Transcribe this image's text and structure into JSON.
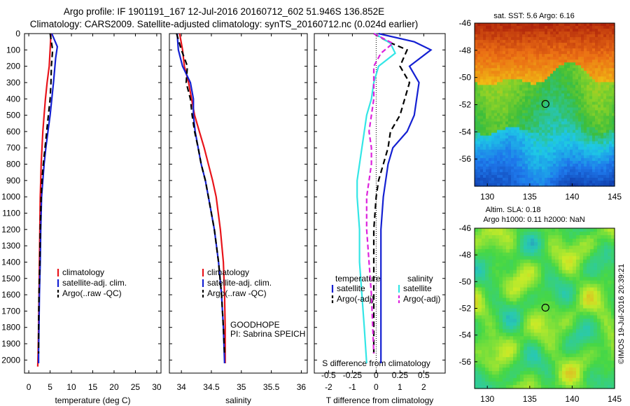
{
  "title_line1": "Argo profile: IF 1901191_167 12-Jul-2016 20160712_602 51.946S 136.852E",
  "title_line2": "Climatology: CARS2009. Satellite-adjusted climatology: synTS_20160712.nc (0.024d earlier)",
  "colors": {
    "climatology": "#e8141a",
    "satellite": "#1420d2",
    "argo": "#000000",
    "salinity_sat": "#33e6e6",
    "salinity_argo": "#dd22dd"
  },
  "chart_data": [
    {
      "type": "line",
      "xlabel": "temperature (deg C)",
      "ylabel": "",
      "xlim": [
        -1,
        31
      ],
      "ylim": [
        2080,
        0
      ],
      "xticks": [
        0,
        5,
        10,
        15,
        20,
        25,
        30
      ],
      "yticks": [
        0,
        100,
        200,
        300,
        400,
        500,
        600,
        700,
        800,
        900,
        1000,
        1100,
        1200,
        1300,
        1400,
        1500,
        1600,
        1700,
        1800,
        1900,
        2000
      ],
      "legend": {
        "position": "center-right",
        "entries": [
          "climatology",
          "satellite-adj. clim.",
          "Argo(..raw -QC)"
        ]
      },
      "series": [
        {
          "name": "climatology",
          "x": [
            5.2,
            5.0,
            4.8,
            4.3,
            3.9,
            3.6,
            3.3,
            3.1,
            2.9,
            2.8,
            2.7,
            2.6,
            2.5,
            2.4,
            2.3,
            2.2,
            2.1
          ],
          "y": [
            0,
            100,
            200,
            300,
            400,
            500,
            600,
            700,
            800,
            900,
            1000,
            1200,
            1400,
            1600,
            1800,
            1950,
            2040
          ]
        },
        {
          "name": "satellite-adj. clim.",
          "x": [
            5.4,
            6.7,
            6.3,
            5.8,
            5.4,
            5.0,
            4.5,
            4.0,
            3.6,
            3.3,
            3.0,
            2.8,
            2.7,
            2.5,
            2.4,
            2.3,
            2.3
          ],
          "y": [
            0,
            80,
            150,
            300,
            400,
            500,
            600,
            700,
            800,
            900,
            1000,
            1200,
            1400,
            1600,
            1800,
            1950,
            2020
          ]
        },
        {
          "name": "Argo(..raw -QC)",
          "x": [
            5.0,
            5.6,
            5.3,
            5.2,
            5.0,
            4.6,
            4.2,
            3.8,
            3.4,
            3.1,
            2.9,
            2.7,
            2.6,
            2.4,
            2.3,
            2.3
          ],
          "y": [
            0,
            100,
            200,
            300,
            400,
            500,
            600,
            700,
            800,
            900,
            1000,
            1200,
            1400,
            1600,
            1800,
            1960
          ]
        }
      ]
    },
    {
      "type": "line",
      "xlabel": "salinity",
      "xlim": [
        33.8,
        36.1
      ],
      "ylim": [
        2080,
        0
      ],
      "xticks": [
        34,
        34.5,
        35,
        35.5,
        36
      ],
      "legend": {
        "position": "center-right",
        "entries": [
          "climatology",
          "satellite-adj. clim.",
          "Argo(..raw -QC)"
        ]
      },
      "annotations": [
        "GOODHOPE",
        "PI: Sabrina SPEICH"
      ],
      "series": [
        {
          "name": "climatology",
          "x": [
            33.97,
            34.02,
            34.05,
            34.12,
            34.17,
            34.22,
            34.3,
            34.38,
            34.45,
            34.52,
            34.58,
            34.65,
            34.7,
            34.72,
            34.73,
            34.73
          ],
          "y": [
            0,
            100,
            200,
            300,
            400,
            500,
            600,
            700,
            800,
            900,
            1000,
            1200,
            1400,
            1600,
            1800,
            2020
          ]
        },
        {
          "name": "satellite-adj. clim.",
          "x": [
            33.93,
            33.95,
            34.02,
            34.15,
            34.2,
            34.2,
            34.23,
            34.28,
            34.33,
            34.4,
            34.45,
            34.55,
            34.62,
            34.67,
            34.7,
            34.72
          ],
          "y": [
            0,
            100,
            200,
            300,
            400,
            500,
            600,
            700,
            800,
            900,
            1000,
            1200,
            1400,
            1600,
            1800,
            2020
          ]
        },
        {
          "name": "Argo(..raw -QC)",
          "x": [
            33.92,
            34.0,
            34.1,
            34.08,
            34.15,
            34.18,
            34.22,
            34.28,
            34.33,
            34.4,
            34.45,
            34.55,
            34.62,
            34.67,
            34.7,
            34.72
          ],
          "y": [
            0,
            100,
            200,
            300,
            400,
            500,
            600,
            700,
            800,
            900,
            1000,
            1200,
            1400,
            1600,
            1800,
            1960
          ]
        }
      ]
    },
    {
      "type": "line",
      "xlabel": "T difference from climatology",
      "xlabel_top": "S difference from climatology",
      "xlim": [
        -2.6,
        2.9
      ],
      "xticks": [
        -2,
        -1,
        0,
        1,
        2
      ],
      "xticks_S": [
        "-0.5",
        "-0.25",
        "0",
        "0.25",
        "0.5"
      ],
      "ylim": [
        2080,
        0
      ],
      "legend_temperature": {
        "title": "temperature",
        "entries": [
          "satellite",
          "Argo(-adj)"
        ]
      },
      "legend_salinity": {
        "title": "salinity",
        "entries": [
          "satellite",
          "Argo(-adj)"
        ]
      },
      "series": [
        {
          "name": "satellite",
          "group": "temperature",
          "x": [
            0.1,
            1.6,
            2.3,
            1.4,
            1.8,
            1.7,
            1.6,
            1.3,
            0.7,
            0.5,
            0.4,
            0.3,
            0.2,
            0.2,
            0.2,
            0.2,
            0.2
          ],
          "y": [
            0,
            50,
            100,
            200,
            300,
            400,
            500,
            600,
            700,
            800,
            900,
            1000,
            1200,
            1400,
            1600,
            1800,
            2020
          ]
        },
        {
          "name": "Argo(-adj)",
          "group": "temperature",
          "x": [
            -0.1,
            0.5,
            1.3,
            1.0,
            1.4,
            1.2,
            1.0,
            0.6,
            0.5,
            0.3,
            0.1,
            0.0,
            -0.1,
            -0.1,
            -0.1,
            -0.1
          ],
          "y": [
            0,
            50,
            100,
            200,
            300,
            400,
            500,
            600,
            700,
            800,
            900,
            1000,
            1200,
            1400,
            1600,
            1960
          ]
        },
        {
          "name": "satellite",
          "group": "salinity",
          "x": [
            -0.05,
            0.6,
            0.8,
            0.1,
            -0.1,
            -0.2,
            -0.4,
            -0.5,
            -0.6,
            -0.7,
            -0.8,
            -0.8,
            -0.7,
            -0.7,
            -0.6,
            -0.5,
            -0.4
          ],
          "y": [
            0,
            60,
            120,
            200,
            300,
            400,
            500,
            600,
            700,
            800,
            900,
            1000,
            1200,
            1400,
            1600,
            1800,
            2020
          ]
        },
        {
          "name": "Argo(-adj)",
          "group": "salinity",
          "x": [
            -0.1,
            0.7,
            0.2,
            -0.1,
            -0.1,
            -0.1,
            -0.2,
            -0.3,
            -0.2,
            -0.2,
            -0.3,
            -0.4,
            -0.4,
            -0.3,
            -0.2,
            -0.1
          ],
          "y": [
            0,
            60,
            120,
            200,
            300,
            400,
            500,
            600,
            700,
            800,
            900,
            1000,
            1200,
            1400,
            1600,
            1960
          ]
        }
      ]
    },
    {
      "type": "heatmap",
      "title": "sat. SST: 5.6 Argo: 6.16",
      "xlim": [
        128.5,
        145
      ],
      "ylim": [
        -58,
        -46
      ],
      "xticks": [
        130,
        135,
        140,
        145
      ],
      "yticks": [
        -46,
        -48,
        -50,
        -52,
        -54,
        -56
      ],
      "marker": {
        "lon": 136.852,
        "lat": -51.946
      }
    },
    {
      "type": "heatmap",
      "title_line1": "Altim. SLA: 0.18",
      "title_line2": "Argo h1000: 0.11 h2000: NaN",
      "xlim": [
        128.5,
        145
      ],
      "ylim": [
        -58,
        -46
      ],
      "xticks": [
        130,
        135,
        140,
        145
      ],
      "yticks": [
        -46,
        -48,
        -50,
        -52,
        -54,
        -56
      ],
      "marker": {
        "lon": 136.852,
        "lat": -51.946
      },
      "side_label": "©IMOS 19-Jul-2016 20:39:21"
    }
  ]
}
